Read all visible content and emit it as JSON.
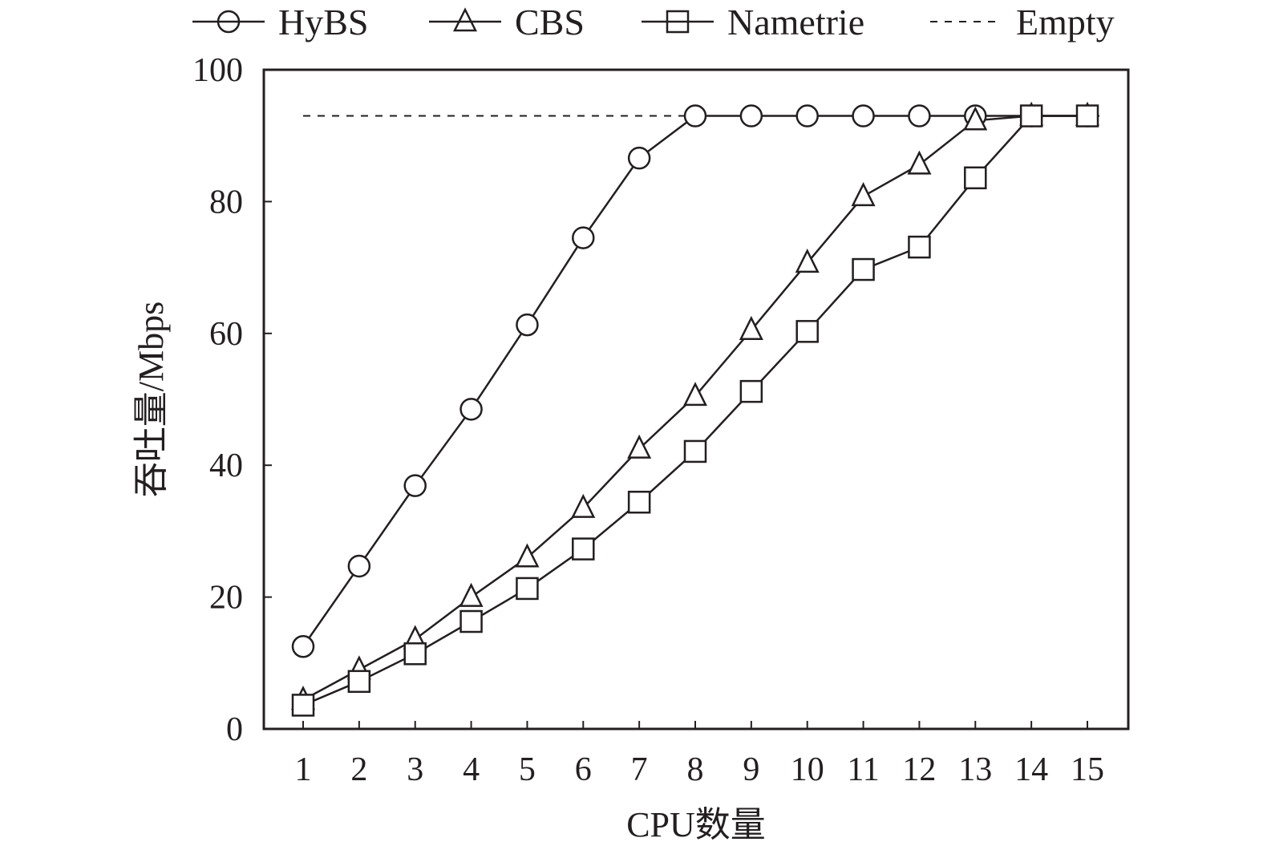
{
  "chart_data": {
    "type": "line",
    "title": "",
    "xlabel": "CPU数量",
    "ylabel": "吞吐量/Mbps",
    "x": [
      1,
      2,
      3,
      4,
      5,
      6,
      7,
      8,
      9,
      10,
      11,
      12,
      13,
      14,
      15
    ],
    "x_tick_labels": [
      "1",
      "2",
      "3",
      "4",
      "5",
      "6",
      "7",
      "8",
      "9",
      "10",
      "11",
      "12",
      "13",
      "14",
      "15"
    ],
    "y_tick_labels": [
      "0",
      "20",
      "40",
      "60",
      "80",
      "100"
    ],
    "y_ticks": [
      0,
      20,
      40,
      60,
      80,
      100
    ],
    "xlim": [
      0.5,
      15.75
    ],
    "ylim": [
      0,
      100
    ],
    "grid": false,
    "legend_position": "top",
    "series": [
      {
        "name": "HyBS",
        "marker": "circle",
        "style": "solid",
        "values": [
          12.5,
          24.7,
          36.9,
          48.5,
          61.3,
          74.5,
          86.6,
          93,
          93,
          93,
          93,
          93,
          93,
          93,
          93
        ]
      },
      {
        "name": "CBS",
        "marker": "triangle",
        "style": "solid",
        "values": [
          4.4,
          9,
          13.6,
          20,
          26,
          33.5,
          42.5,
          50.5,
          60.5,
          70.7,
          80.8,
          85.6,
          92.3,
          93,
          93
        ]
      },
      {
        "name": "Nametrie",
        "marker": "square",
        "style": "solid",
        "values": [
          3.6,
          7.2,
          11.4,
          16.3,
          21.3,
          27.3,
          34.4,
          42.1,
          51.2,
          60.3,
          69.7,
          73.1,
          83.6,
          93,
          93
        ]
      },
      {
        "name": "Empty",
        "marker": "none",
        "style": "dashed",
        "values": [
          93,
          93,
          93,
          93,
          93,
          93,
          93,
          93,
          93,
          93,
          93,
          93,
          93,
          93,
          93
        ]
      }
    ],
    "colors": {
      "line": "#231f20"
    }
  }
}
